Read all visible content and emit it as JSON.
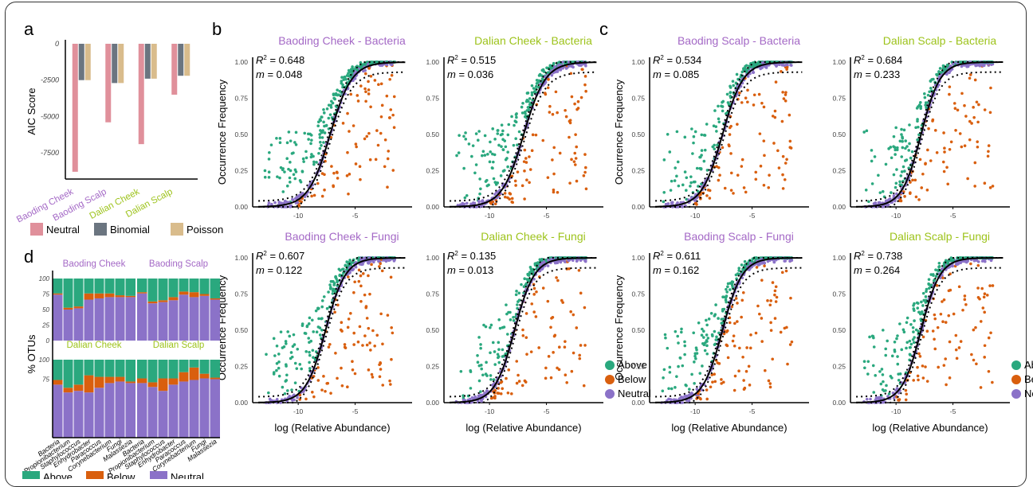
{
  "panel_letters": {
    "a": "a",
    "b": "b",
    "c": "c",
    "d": "d"
  },
  "colors": {
    "above": "#2aa87e",
    "below": "#d95f0e",
    "neutral": "#8b72c8",
    "neutral_bar": "#e0909b",
    "binomial_bar": "#6b7580",
    "poisson_bar": "#d9bc8c",
    "baoding": "#a469c6",
    "dalian": "#9dc31b",
    "fit_line": "#000000"
  },
  "chart_data": [
    {
      "id": "a",
      "type": "bar",
      "ylabel": "AIC Score",
      "categories": [
        "Baoding Cheek",
        "Baoding Scalp",
        "Dalian Cheek",
        "Dalian Scalp"
      ],
      "category_colors": [
        "#a469c6",
        "#a469c6",
        "#9dc31b",
        "#9dc31b"
      ],
      "series": [
        {
          "name": "Neutral",
          "color": "#e0909b",
          "values": [
            -8800,
            -5400,
            -6900,
            -3500
          ]
        },
        {
          "name": "Binomial",
          "color": "#6b7580",
          "values": [
            -2500,
            -2700,
            -2400,
            -2200
          ]
        },
        {
          "name": "Poisson",
          "color": "#d9bc8c",
          "values": [
            -2500,
            -2700,
            -2400,
            -2200
          ]
        }
      ],
      "yticks": [
        0,
        -2500,
        -5000,
        -7500
      ],
      "ytick_labels": [
        "0",
        "-2500",
        "-5000",
        "-7500"
      ],
      "ylim": [
        -9300,
        0
      ],
      "legend": [
        "Neutral",
        "Binomial",
        "Poisson"
      ],
      "legend_position": "bottom"
    },
    {
      "id": "b1",
      "type": "scatter",
      "title": "Baoding Cheek - Bacteria",
      "title_color": "#a469c6",
      "r2": "0.648",
      "m": "0.048",
      "ylabel": "Occurrence Frequency",
      "xlabel": "",
      "xlim": [
        -14,
        0
      ],
      "ylim": [
        0,
        1
      ],
      "xticks": [
        -10,
        -5
      ],
      "yticks": [
        0,
        0.25,
        0.5,
        0.75,
        1
      ],
      "ytick_labels": [
        "0.00",
        "0.25",
        "0.50",
        "0.75",
        "1.00"
      ],
      "fit_midpoint": -7.2,
      "fit_slope": 1.05,
      "series": [
        "Above",
        "Below",
        "Neutral"
      ]
    },
    {
      "id": "b2",
      "type": "scatter",
      "title": "Dalian Cheek - Bacteria",
      "title_color": "#9dc31b",
      "r2": "0.515",
      "m": "0.036",
      "ylabel": "",
      "xlabel": "",
      "xlim": [
        -14,
        0
      ],
      "ylim": [
        0,
        1
      ],
      "xticks": [
        -10,
        -5
      ],
      "yticks": [
        0,
        0.25,
        0.5,
        0.75,
        1
      ],
      "ytick_labels": [
        "0.00",
        "0.25",
        "0.50",
        "0.75",
        "1.00"
      ],
      "fit_midpoint": -7.0,
      "fit_slope": 1.05,
      "series": [
        "Above",
        "Below",
        "Neutral"
      ]
    },
    {
      "id": "b3",
      "type": "scatter",
      "title": "Baoding Cheek - Fungi",
      "title_color": "#a469c6",
      "r2": "0.607",
      "m": "0.122",
      "ylabel": "Occurrence Frequency",
      "xlabel": "log (Relative Abundance)",
      "xlim": [
        -14,
        0
      ],
      "ylim": [
        0,
        1
      ],
      "xticks": [
        -10,
        -5
      ],
      "yticks": [
        0,
        0.25,
        0.5,
        0.75,
        1
      ],
      "ytick_labels": [
        "0.00",
        "0.25",
        "0.50",
        "0.75",
        "1.00"
      ],
      "fit_midpoint": -7.6,
      "fit_slope": 1.15,
      "series": [
        "Above",
        "Below",
        "Neutral"
      ]
    },
    {
      "id": "b4",
      "type": "scatter",
      "title": "Dalian Cheek - Fungi",
      "title_color": "#9dc31b",
      "r2": "0.135",
      "m": "0.013",
      "ylabel": "",
      "xlabel": "log (Relative Abundance)",
      "xlim": [
        -14,
        0
      ],
      "ylim": [
        0,
        1
      ],
      "xticks": [
        -10,
        -5
      ],
      "yticks": [
        0,
        0.25,
        0.5,
        0.75,
        1
      ],
      "ytick_labels": [
        "0.00",
        "0.25",
        "0.50",
        "0.75",
        "1.00"
      ],
      "fit_midpoint": -7.8,
      "fit_slope": 1.15,
      "series": [
        "Above",
        "Below",
        "Neutral"
      ],
      "legend": [
        "Above",
        "Below",
        "Neutral"
      ],
      "legend_position": "bottom-right"
    },
    {
      "id": "c1",
      "type": "scatter",
      "title": "Baoding Scalp - Bacteria",
      "title_color": "#a469c6",
      "r2": "0.534",
      "m": "0.085",
      "ylabel": "Occurrence Frequency",
      "xlabel": "",
      "xlim": [
        -14,
        0
      ],
      "ylim": [
        0,
        1
      ],
      "xticks": [
        -10,
        -5
      ],
      "yticks": [
        0,
        0.25,
        0.5,
        0.75,
        1
      ],
      "ytick_labels": [
        "0.00",
        "0.25",
        "0.50",
        "0.75",
        "1.00"
      ],
      "fit_midpoint": -7.6,
      "fit_slope": 1.1,
      "series": [
        "Above",
        "Below",
        "Neutral"
      ]
    },
    {
      "id": "c2",
      "type": "scatter",
      "title": "Dalian Scalp - Bacteria",
      "title_color": "#9dc31b",
      "r2": "0.684",
      "m": "0.233",
      "ylabel": "",
      "xlabel": "",
      "xlim": [
        -14,
        0
      ],
      "ylim": [
        0,
        1
      ],
      "xticks": [
        -10,
        -5
      ],
      "yticks": [
        0,
        0.25,
        0.5,
        0.75,
        1
      ],
      "ytick_labels": [
        "0.00",
        "0.25",
        "0.50",
        "0.75",
        "1.00"
      ],
      "fit_midpoint": -7.8,
      "fit_slope": 1.2,
      "series": [
        "Above",
        "Below",
        "Neutral"
      ]
    },
    {
      "id": "c3",
      "type": "scatter",
      "title": "Baoding Scalp - Fungi",
      "title_color": "#a469c6",
      "r2": "0.611",
      "m": "0.162",
      "ylabel": "Occurrence Frequency",
      "xlabel": "log (Relative Abundance)",
      "xlim": [
        -14,
        0
      ],
      "ylim": [
        0,
        1
      ],
      "xticks": [
        -10,
        -5
      ],
      "yticks": [
        0,
        0.25,
        0.5,
        0.75,
        1
      ],
      "ytick_labels": [
        "0.00",
        "0.25",
        "0.50",
        "0.75",
        "1.00"
      ],
      "fit_midpoint": -7.6,
      "fit_slope": 1.15,
      "series": [
        "Above",
        "Below",
        "Neutral"
      ]
    },
    {
      "id": "c4",
      "type": "scatter",
      "title": "Dalian Scalp - Fungi",
      "title_color": "#9dc31b",
      "r2": "0.738",
      "m": "0.264",
      "ylabel": "",
      "xlabel": "log (Relative Abundance)",
      "xlim": [
        -14,
        0
      ],
      "ylim": [
        0,
        1
      ],
      "xticks": [
        -10,
        -5
      ],
      "yticks": [
        0,
        0.25,
        0.5,
        0.75,
        1
      ],
      "ytick_labels": [
        "0.00",
        "0.25",
        "0.50",
        "0.75",
        "1.00"
      ],
      "fit_midpoint": -7.8,
      "fit_slope": 1.2,
      "series": [
        "Above",
        "Below",
        "Neutral"
      ],
      "legend": [
        "Above",
        "Below",
        "Neutral"
      ],
      "legend_position": "bottom-right"
    },
    {
      "id": "d",
      "type": "bar",
      "stacked": true,
      "ylabel": "% OTUs",
      "yticks": [
        0,
        25,
        50,
        75,
        100
      ],
      "ytick_labels": [
        "0",
        "25",
        "50",
        "75",
        "100"
      ],
      "categories": [
        "Bacteria",
        "Propionibacterium",
        "Staphylococcus",
        "Enhydrobacter",
        "Paracoccus",
        "Corynebacterium",
        "Fungi",
        "Malassezia"
      ],
      "series_names": [
        "Above",
        "Below",
        "Neutral"
      ],
      "legend": [
        "Above",
        "Below",
        "Neutral"
      ],
      "legend_position": "bottom",
      "facets": [
        {
          "title": "Baoding Cheek",
          "title_color": "#a469c6",
          "neutral": [
            74,
            50,
            52,
            66,
            68,
            70,
            70,
            70
          ],
          "below": [
            2,
            3,
            3,
            10,
            8,
            6,
            3,
            2
          ]
        },
        {
          "title": "Baoding Scalp",
          "title_color": "#a469c6",
          "neutral": [
            76,
            60,
            62,
            65,
            74,
            70,
            72,
            66
          ],
          "below": [
            2,
            3,
            3,
            5,
            5,
            8,
            3,
            2
          ]
        },
        {
          "title": "Dalian Cheek",
          "title_color": "#9dc31b",
          "neutral": [
            68,
            58,
            60,
            58,
            64,
            70,
            72,
            70
          ],
          "below": [
            6,
            6,
            8,
            22,
            14,
            8,
            6,
            2
          ]
        },
        {
          "title": "Dalian Scalp",
          "title_color": "#9dc31b",
          "neutral": [
            70,
            65,
            60,
            68,
            72,
            74,
            76,
            75
          ],
          "below": [
            6,
            6,
            16,
            8,
            12,
            16,
            6,
            2
          ]
        }
      ]
    }
  ]
}
